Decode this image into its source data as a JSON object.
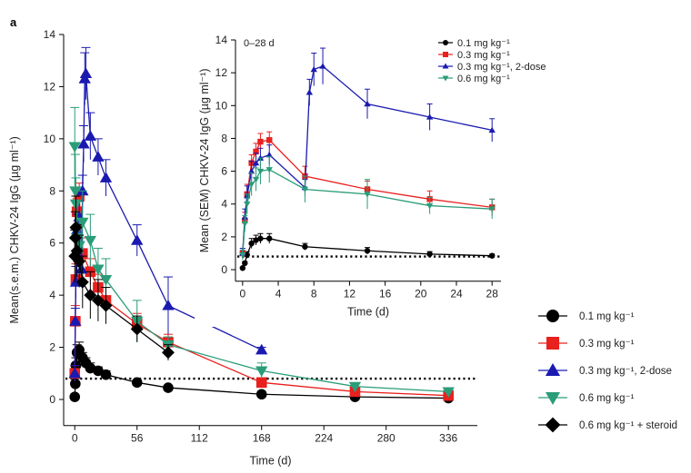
{
  "panel_label": "a",
  "chart_data": [
    {
      "type": "line",
      "xlabel": "Time (d)",
      "ylabel": "Mean(s.e.m.) CHKV-24 IgG (µg ml⁻¹)",
      "xlim": [
        -10,
        362
      ],
      "ylim": [
        -1,
        14
      ],
      "xticks": [
        "0",
        "56",
        "112",
        "168",
        "224",
        "280",
        "336"
      ],
      "yticks": [
        "0",
        "2",
        "4",
        "6",
        "8",
        "10",
        "12",
        "14"
      ],
      "threshold": 0.8,
      "series": [
        {
          "name": "0.1 mg kg⁻¹",
          "color": "#000000",
          "marker": "circle",
          "x": [
            0,
            0.5,
            1,
            2,
            4,
            7,
            10,
            14,
            21,
            28,
            56,
            84,
            168,
            252,
            336
          ],
          "y": [
            0.1,
            0.6,
            1.3,
            1.8,
            1.9,
            1.6,
            1.4,
            1.2,
            1.1,
            0.95,
            0.65,
            0.45,
            0.2,
            0.1,
            0.05
          ],
          "err": [
            0.05,
            0.2,
            0.3,
            0.3,
            0.3,
            0.2,
            0.2,
            0.2,
            0.15,
            0.15,
            0.1,
            0.08,
            0.05,
            0.04,
            0.03
          ]
        },
        {
          "name": "0.3 mg kg⁻¹",
          "color": "#e8201e",
          "marker": "square",
          "x": [
            0,
            0.5,
            1,
            2,
            4,
            7,
            14,
            21,
            28,
            56,
            84,
            168,
            252,
            336
          ],
          "y": [
            1.0,
            3.0,
            4.6,
            7.2,
            7.8,
            5.6,
            4.9,
            4.3,
            3.8,
            2.9,
            2.2,
            0.65,
            0.3,
            0.15
          ],
          "err": [
            0.3,
            0.6,
            0.6,
            0.5,
            0.5,
            0.6,
            0.5,
            0.5,
            0.5,
            0.4,
            0.3,
            0.15,
            0.08,
            0.05
          ]
        },
        {
          "name": "0.3 mg kg⁻¹, 2-dose",
          "color": "#1a1ab0",
          "marker": "triangle-up",
          "x": [
            0,
            0.5,
            1,
            2,
            4,
            6,
            7,
            8,
            9,
            10,
            14,
            21,
            28,
            56,
            84,
            168
          ],
          "y": [
            1.0,
            3.0,
            4.5,
            6.5,
            7.0,
            5.0,
            8.0,
            9.8,
            12.3,
            12.5,
            10.1,
            9.3,
            8.5,
            6.1,
            3.6,
            1.9
          ],
          "err": [
            0.3,
            0.5,
            0.6,
            0.6,
            0.6,
            0.5,
            0.6,
            0.7,
            1.0,
            1.0,
            0.9,
            0.7,
            0.7,
            0.6,
            1.1,
            0.1
          ]
        },
        {
          "name": "0.6 mg kg⁻¹",
          "color": "#2a9d78",
          "marker": "triangle-down",
          "x": [
            0,
            0.5,
            1,
            2,
            4,
            7,
            14,
            21,
            28,
            56,
            84,
            168,
            252,
            336
          ],
          "y": [
            9.7,
            8.0,
            7.5,
            6.2,
            5.9,
            6.8,
            6.1,
            5.0,
            4.6,
            3.0,
            2.1,
            1.1,
            0.5,
            0.3
          ],
          "err": [
            1.5,
            1.4,
            1.0,
            1.0,
            1.0,
            1.2,
            1.0,
            0.8,
            0.8,
            0.8,
            0.3,
            0.3,
            0.1,
            0.1
          ]
        },
        {
          "name": "0.6 mg kg⁻¹ + steroid",
          "color": "#000000",
          "marker": "diamond",
          "x": [
            0,
            0.5,
            1,
            2,
            4,
            7,
            14,
            21,
            28,
            56,
            84
          ],
          "y": [
            5.5,
            6.2,
            6.6,
            5.7,
            5.3,
            4.5,
            4.0,
            3.8,
            3.6,
            2.7,
            1.8
          ],
          "err": [
            1.0,
            1.0,
            1.2,
            1.0,
            1.0,
            1.0,
            0.9,
            0.8,
            0.7,
            0.5,
            0.3
          ]
        }
      ]
    },
    {
      "type": "line",
      "title": "0–28 d",
      "xlabel": "Time (d)",
      "ylabel": "Mean (SEM) CHKV-24 IgG (µg ml⁻¹)",
      "xlim": [
        -0.8,
        29
      ],
      "ylim": [
        -0.7,
        14
      ],
      "xticks": [
        "0",
        "4",
        "8",
        "12",
        "16",
        "20",
        "24",
        "28"
      ],
      "yticks": [
        "0",
        "2",
        "4",
        "6",
        "8",
        "10",
        "12",
        "14"
      ],
      "threshold": 0.8,
      "series": [
        {
          "name": "0.1 mg kg⁻¹",
          "color": "#000000",
          "marker": "circle",
          "x": [
            0,
            0.25,
            0.5,
            1,
            1.5,
            2,
            3,
            7,
            14,
            21,
            28
          ],
          "y": [
            0.1,
            0.4,
            0.9,
            1.6,
            1.8,
            1.9,
            1.9,
            1.4,
            1.15,
            0.95,
            0.85
          ],
          "err": [
            0.05,
            0.1,
            0.2,
            0.3,
            0.3,
            0.3,
            0.3,
            0.2,
            0.2,
            0.15,
            0.1
          ]
        },
        {
          "name": "0.3 mg kg⁻¹",
          "color": "#e8201e",
          "marker": "square",
          "x": [
            0,
            0.25,
            0.5,
            1,
            1.5,
            2,
            3,
            7,
            14,
            21,
            28
          ],
          "y": [
            1.0,
            3.0,
            4.6,
            6.5,
            7.2,
            7.8,
            7.9,
            5.7,
            4.9,
            4.3,
            3.8
          ],
          "err": [
            0.3,
            0.5,
            0.6,
            0.5,
            0.5,
            0.5,
            0.5,
            0.6,
            0.5,
            0.5,
            0.5
          ]
        },
        {
          "name": "0.3 mg kg⁻¹, 2-dose",
          "color": "#1a1ab0",
          "marker": "triangle-up",
          "x": [
            0,
            0.25,
            0.5,
            1,
            1.5,
            2,
            3,
            7,
            7.5,
            8,
            9,
            14,
            21,
            28
          ],
          "y": [
            1.0,
            3.2,
            4.5,
            6.0,
            6.5,
            6.8,
            7.0,
            5.0,
            10.8,
            12.2,
            12.4,
            10.1,
            9.3,
            8.5
          ],
          "err": [
            0.3,
            0.5,
            0.6,
            0.6,
            0.6,
            0.6,
            0.6,
            0.5,
            0.8,
            1.0,
            1.1,
            0.9,
            0.8,
            0.7
          ]
        },
        {
          "name": "0.6 mg kg⁻¹",
          "color": "#2a9d78",
          "marker": "triangle-down",
          "x": [
            0,
            0.25,
            0.5,
            1,
            1.5,
            2,
            3,
            7,
            14,
            21,
            28
          ],
          "y": [
            0.9,
            2.8,
            4.0,
            5.2,
            5.5,
            6.0,
            6.1,
            4.9,
            4.6,
            3.9,
            3.7
          ],
          "err": [
            0.3,
            0.5,
            0.6,
            0.7,
            0.7,
            0.8,
            0.8,
            0.8,
            0.9,
            0.5,
            0.6
          ]
        }
      ]
    }
  ]
}
